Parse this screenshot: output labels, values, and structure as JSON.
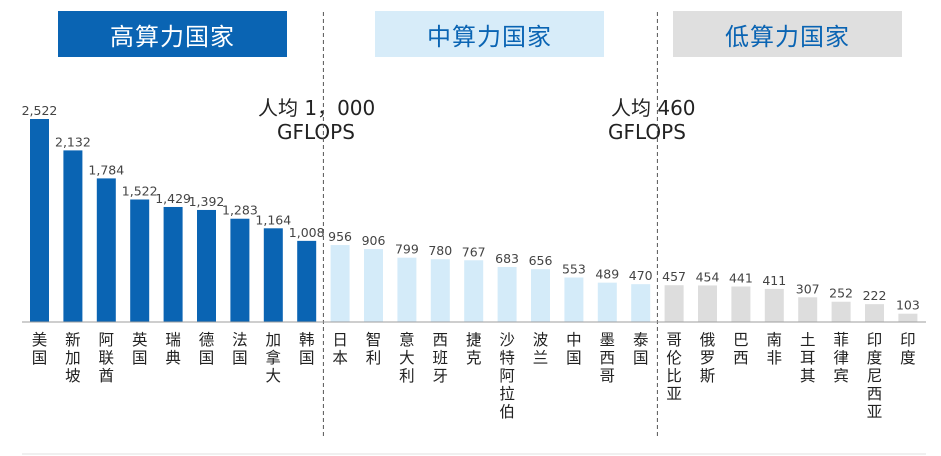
{
  "groups": {
    "high": "高算力国家",
    "mid": "中算力国家",
    "low": "低算力国家"
  },
  "thresholds": {
    "t1": {
      "line1": "人均 1，000",
      "line2": "GFLOPS"
    },
    "t2": {
      "line1": "人均 460",
      "line2": "GFLOPS"
    }
  },
  "colors": {
    "high": "#0a64b3",
    "mid": "#d4ebf9",
    "low": "#dddddd"
  },
  "chart_data": {
    "type": "bar",
    "categories": [
      "美国",
      "新加坡",
      "阿联酋",
      "英国",
      "瑞典",
      "德国",
      "法国",
      "加拿大",
      "韩国",
      "日本",
      "智利",
      "意大利",
      "西班牙",
      "捷克",
      "沙特阿拉伯",
      "波兰",
      "中国",
      "墨西哥",
      "泰国",
      "哥伦比亚",
      "俄罗斯",
      "巴西",
      "南非",
      "土耳其",
      "菲律宾",
      "印度尼西亚",
      "印度"
    ],
    "values": [
      2522,
      2132,
      1784,
      1522,
      1429,
      1392,
      1283,
      1164,
      1008,
      956,
      906,
      799,
      780,
      767,
      683,
      656,
      553,
      489,
      470,
      457,
      454,
      441,
      411,
      307,
      252,
      222,
      103
    ],
    "value_labels": [
      "2,522",
      "2,132",
      "1,784",
      "1,522",
      "1,429",
      "1,392",
      "1,283",
      "1,164",
      "1,008",
      "956",
      "906",
      "799",
      "780",
      "767",
      "683",
      "656",
      "553",
      "489",
      "470",
      "457",
      "454",
      "441",
      "411",
      "307",
      "252",
      "222",
      "103"
    ],
    "group": [
      "high",
      "high",
      "high",
      "high",
      "high",
      "high",
      "high",
      "high",
      "high",
      "mid",
      "mid",
      "mid",
      "mid",
      "mid",
      "mid",
      "mid",
      "mid",
      "mid",
      "mid",
      "low",
      "low",
      "low",
      "low",
      "low",
      "low",
      "low",
      "low"
    ],
    "ylim": [
      0,
      2600
    ]
  }
}
